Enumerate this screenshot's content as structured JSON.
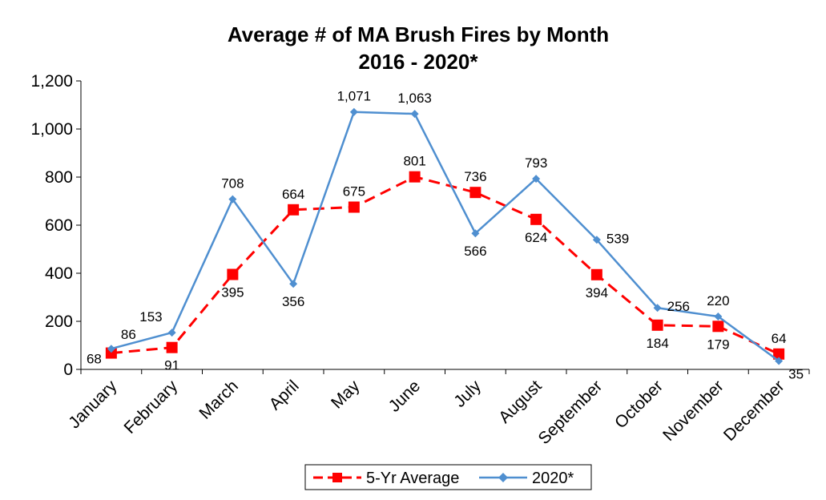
{
  "chart_data": {
    "type": "line",
    "title": "Average # of MA Brush Fires by Month",
    "subtitle": "2016 - 2020*",
    "categories": [
      "January",
      "February",
      "March",
      "April",
      "May",
      "June",
      "July",
      "August",
      "September",
      "October",
      "November",
      "December"
    ],
    "ylim": [
      0,
      1200
    ],
    "yticks": [
      0,
      200,
      400,
      600,
      800,
      1000,
      1200
    ],
    "ytick_labels": [
      "0",
      "200",
      "400",
      "600",
      "800",
      "1,000",
      "1,200"
    ],
    "grid": false,
    "legend_position": "bottom",
    "series": [
      {
        "name": "5-Yr Average",
        "color": "#ff0000",
        "marker": "square",
        "line_style": "dashed",
        "values": [
          68,
          91,
          395,
          664,
          675,
          801,
          736,
          624,
          394,
          184,
          179,
          64
        ],
        "labels": [
          "68",
          "91",
          "395",
          "664",
          "675",
          "801",
          "736",
          "624",
          "394",
          "184",
          "179",
          "64"
        ],
        "label_pos": [
          "left",
          "below",
          "below",
          "above",
          "above",
          "above",
          "above",
          "below",
          "below",
          "below",
          "below",
          "above"
        ]
      },
      {
        "name": "2020*",
        "color": "#4f8fd0",
        "marker": "diamond",
        "line_style": "solid",
        "values": [
          86,
          153,
          708,
          356,
          1071,
          1063,
          566,
          793,
          539,
          256,
          220,
          35
        ],
        "labels": [
          "86",
          "153",
          "708",
          "356",
          "1,071",
          "1,063",
          "566",
          "793",
          "539",
          "256",
          "220",
          "35"
        ],
        "label_pos": [
          "right",
          "left",
          "above",
          "below",
          "above",
          "above",
          "below",
          "above",
          "right",
          "right",
          "above",
          "right"
        ]
      }
    ]
  }
}
